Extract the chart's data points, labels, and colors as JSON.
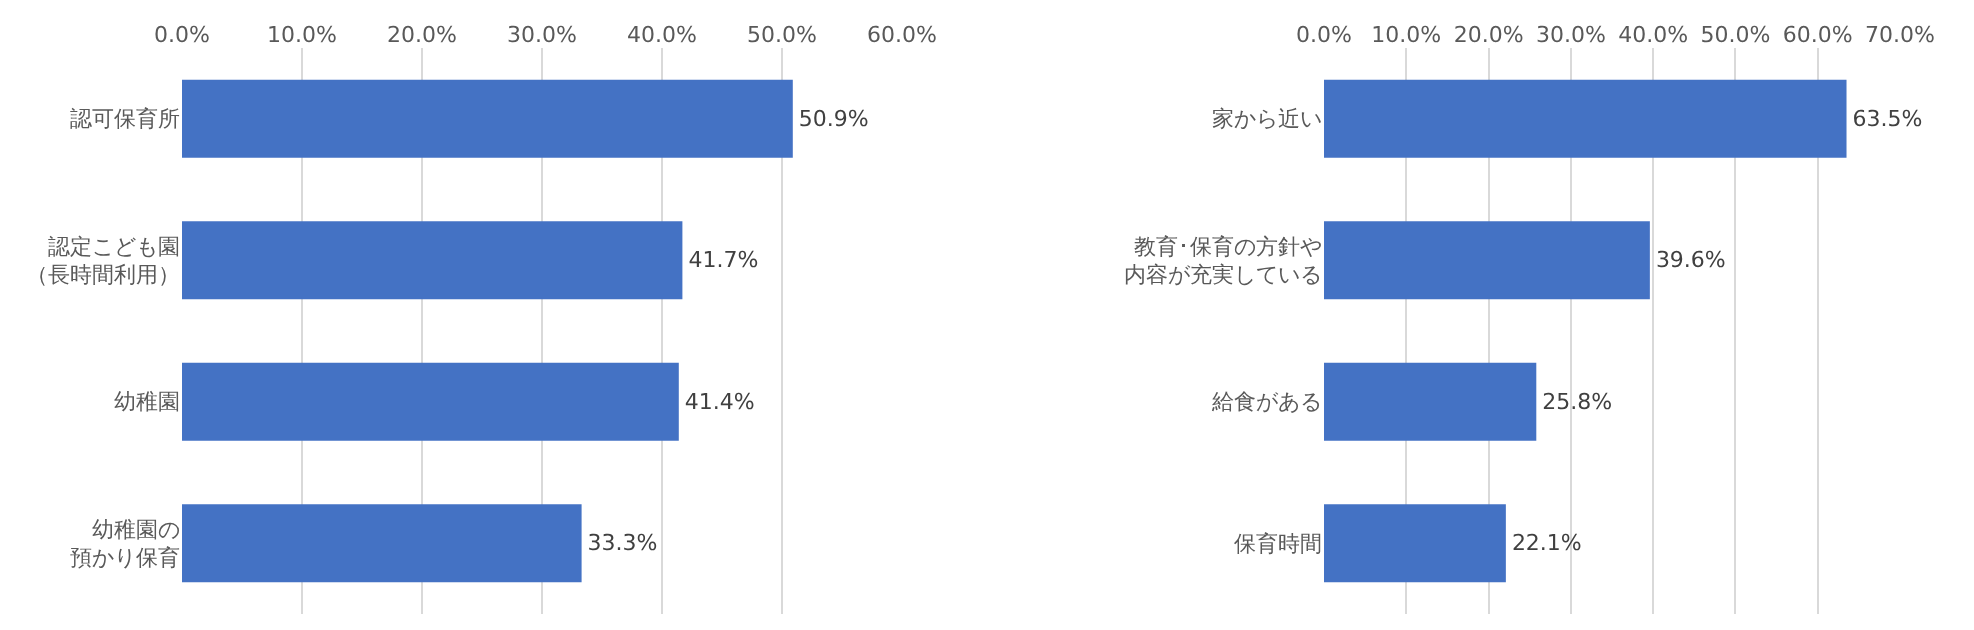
{
  "chart_data": [
    {
      "type": "bar",
      "orientation": "horizontal",
      "categories": [
        "認可保育所",
        "認定こども園（長時間利用）",
        "幼稚園",
        "幼稚園の預かり保育"
      ],
      "values": [
        50.9,
        41.7,
        41.4,
        33.3
      ],
      "color": "#4472c4",
      "value_labels": [
        "50.9%",
        "41.7%",
        "41.4%",
        "33.3%"
      ],
      "xlim": [
        0,
        60
      ],
      "xticks": [
        {
          "value": 0,
          "label": "0.0%"
        },
        {
          "value": 10,
          "label": "10.0%"
        },
        {
          "value": 20,
          "label": "20.0%"
        },
        {
          "value": 30,
          "label": "30.0%"
        },
        {
          "value": 40,
          "label": "40.0%"
        },
        {
          "value": 50,
          "label": "50.0%"
        },
        {
          "value": 60,
          "label": "60.0%"
        }
      ],
      "grid": "x"
    },
    {
      "type": "bar",
      "orientation": "horizontal",
      "categories": [
        "家から近い",
        "教育･保育の方針や内容が充実している",
        "給食がある",
        "保育時間"
      ],
      "values": [
        63.5,
        39.6,
        25.8,
        22.1
      ],
      "color": "#4472c4",
      "value_labels": [
        "63.5%",
        "39.6%",
        "25.8%",
        "22.1%"
      ],
      "xlim": [
        0,
        70
      ],
      "xticks": [
        {
          "value": 0,
          "label": "0.0%"
        },
        {
          "value": 10,
          "label": "10.0%"
        },
        {
          "value": 20,
          "label": "20.0%"
        },
        {
          "value": 30,
          "label": "30.0%"
        },
        {
          "value": 40,
          "label": "40.0%"
        },
        {
          "value": 50,
          "label": "50.0%"
        },
        {
          "value": 60,
          "label": "60.0%"
        },
        {
          "value": 70,
          "label": "70.0%"
        }
      ],
      "grid": "x"
    }
  ]
}
